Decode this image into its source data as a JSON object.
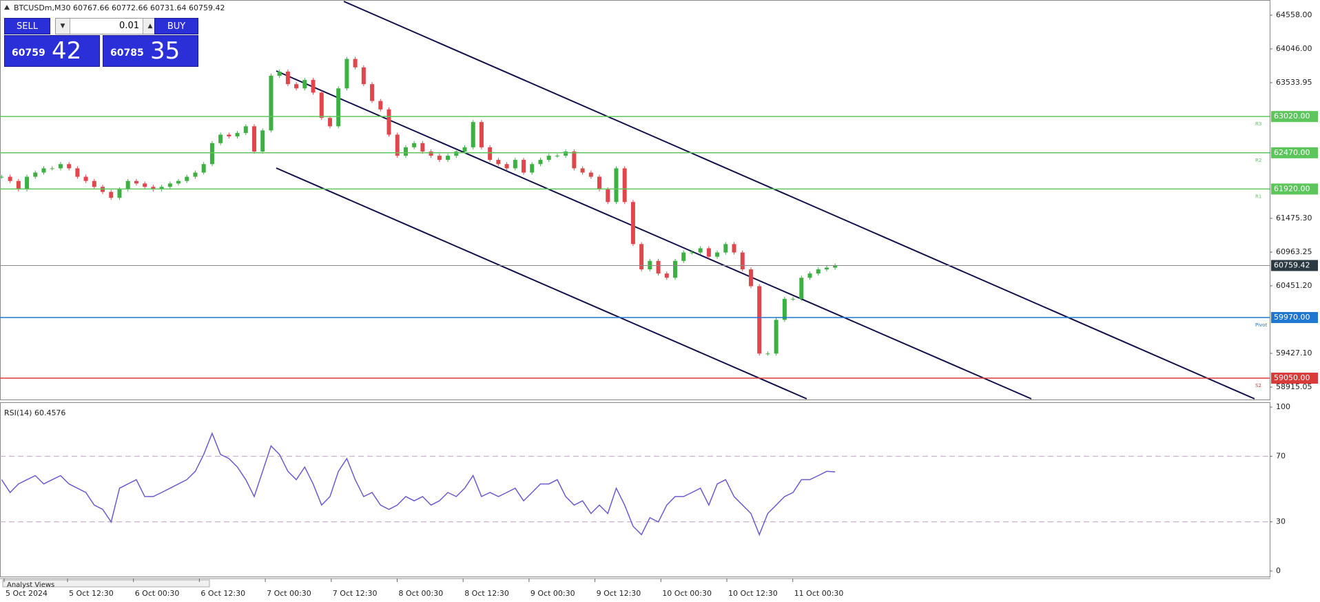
{
  "chart_data": [
    {
      "type": "candlestick",
      "title": "BTCUSDm,M30 60767.66 60772.66 60731.64 60759.42",
      "series": [
        {
          "name": "BTCUSDm",
          "up_color": "#3cb043",
          "down_color": "#e0474c",
          "values": [
            62106,
            62042,
            61915,
            62106,
            62170,
            62234,
            62234,
            62298,
            62234,
            62106,
            62042,
            61953,
            61876,
            61787,
            61915,
            62042,
            62004,
            61953,
            61915,
            61953,
            62004,
            62042,
            62106,
            62170,
            62298,
            62617,
            62745,
            62719,
            62770,
            62872,
            62489,
            62809,
            63639,
            63702,
            63511,
            63447,
            63575,
            63383,
            62999,
            62872,
            63447,
            63894,
            63766,
            63511,
            63256,
            63128,
            62745,
            62425,
            62553,
            62617,
            62489,
            62425,
            62362,
            62425,
            62489,
            62553,
            62936,
            62553,
            62362,
            62298,
            62234,
            62362,
            62170,
            62298,
            62362,
            62425,
            62425,
            62489,
            62234,
            62170,
            62106,
            61915,
            61723,
            62234,
            61723,
            61085,
            60701,
            60829,
            60638,
            60574,
            60829,
            60957,
            60957,
            61021,
            60893,
            60957,
            61085,
            60957,
            60701,
            60446,
            59424,
            59424,
            59935,
            60254,
            60254,
            60574,
            60638,
            60701,
            60727,
            60759.42
          ]
        }
      ],
      "ylim": [
        58737,
        64788
      ],
      "yticks": [
        {
          "value": 64558,
          "label": "64558.00"
        },
        {
          "value": 64046,
          "label": "64046.00"
        },
        {
          "value": 63533.95,
          "label": "63533.95"
        },
        {
          "value": 61475.3,
          "label": "61475.30"
        },
        {
          "value": 60963.25,
          "label": "60963.25"
        },
        {
          "value": 60451.2,
          "label": "60451.20"
        },
        {
          "value": 59427.1,
          "label": "59427.10"
        },
        {
          "value": 58915.05,
          "label": "58915.05"
        }
      ],
      "levels": [
        {
          "name": "R3",
          "value": 63020,
          "label": "63020.00",
          "color": "#5cc65c"
        },
        {
          "name": "R2",
          "value": 62470,
          "label": "62470.00",
          "color": "#5cc65c"
        },
        {
          "name": "R1",
          "value": 61920,
          "label": "61920.00",
          "color": "#5cc65c"
        },
        {
          "name": "Pivot",
          "value": 59970,
          "label": "59970.00",
          "color": "#1f77d0"
        },
        {
          "name": "S2",
          "value": 59050,
          "label": "59050.00",
          "color": "#d93a3a"
        }
      ],
      "current_price": {
        "value": 60759.42,
        "label": "60759.42",
        "color": "#2b3a42"
      },
      "xlabels": [
        "5 Oct 2024",
        "5 Oct 12:30",
        "6 Oct 00:30",
        "6 Oct 12:30",
        "7 Oct 00:30",
        "7 Oct 12:30",
        "8 Oct 00:30",
        "8 Oct 12:30",
        "9 Oct 00:30",
        "9 Oct 12:30",
        "10 Oct 00:30",
        "10 Oct 12:30",
        "11 Oct 00:30"
      ]
    },
    {
      "type": "line",
      "title": "RSI(14) 60.4576",
      "series": [
        {
          "name": "RSI(14)",
          "color": "#6a5acd",
          "values": [
            55.7,
            47.9,
            53.1,
            55.7,
            58.2,
            53.1,
            55.7,
            58.2,
            53.1,
            50.5,
            47.9,
            40.2,
            37.6,
            29.9,
            50.5,
            53.1,
            55.7,
            45.4,
            45.4,
            47.9,
            50.5,
            53.1,
            55.7,
            60.8,
            71.1,
            84.0,
            71.1,
            68.6,
            63.4,
            55.7,
            45.4,
            60.8,
            76.3,
            71.1,
            60.8,
            55.7,
            63.4,
            53.1,
            40.2,
            45.4,
            60.8,
            68.6,
            55.7,
            45.4,
            47.9,
            40.2,
            37.6,
            40.2,
            45.4,
            42.8,
            45.4,
            40.2,
            42.8,
            47.9,
            45.4,
            50.5,
            58.2,
            45.4,
            47.9,
            45.4,
            47.9,
            50.5,
            42.8,
            47.9,
            53.1,
            53.1,
            55.7,
            45.4,
            40.2,
            42.8,
            35.1,
            40.2,
            35.1,
            50.5,
            40.2,
            27.3,
            22.2,
            32.5,
            29.9,
            40.2,
            45.4,
            45.4,
            47.9,
            50.5,
            40.2,
            53.1,
            55.7,
            45.4,
            40.2,
            35.1,
            22.2,
            35.1,
            40.2,
            45.4,
            47.9,
            55.7,
            55.7,
            58.2,
            60.8,
            60.4576
          ]
        }
      ],
      "ylim": [
        0,
        100
      ],
      "yticks": [
        0,
        30,
        70,
        100
      ],
      "dashed_levels": [
        30,
        70
      ]
    }
  ],
  "trade_panel": {
    "sell": "SELL",
    "buy": "BUY",
    "volume": "0.01",
    "bid_main": "60759",
    "bid_pips": "42",
    "ask_main": "60785",
    "ask_pips": "35"
  },
  "footer": {
    "tab": "Analyst Views"
  }
}
